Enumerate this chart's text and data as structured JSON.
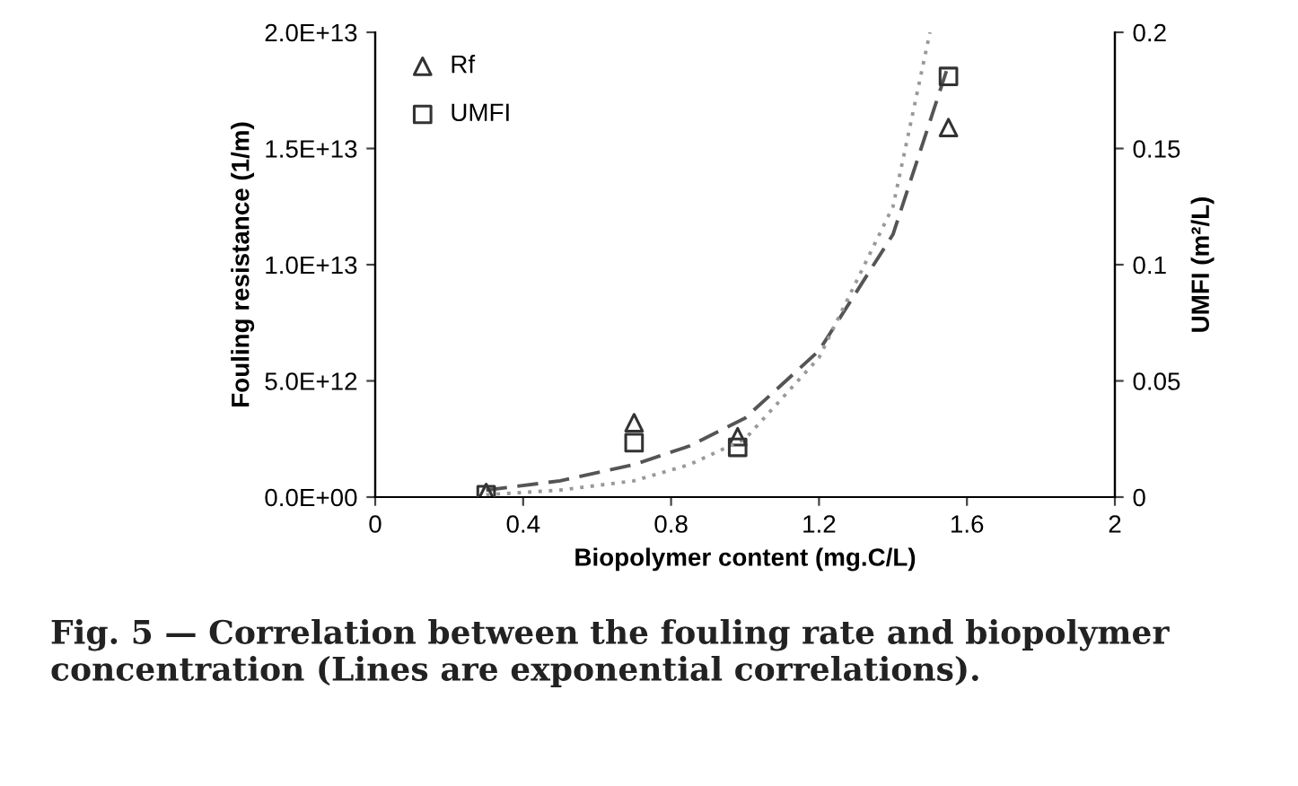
{
  "chart_data": {
    "type": "scatter",
    "xlabel": "Biopolymer content (mg.C/L)",
    "ylabel": "Fouling resistance (1/m)",
    "y2label": "UMFI (m²/L)",
    "xlim": [
      0,
      2
    ],
    "xticks": [
      0,
      0.4,
      0.8,
      1.2,
      1.6,
      2
    ],
    "ylim": [
      0,
      20000000000000.0
    ],
    "yticks": [
      {
        "value": 0,
        "label": "0.0E+00"
      },
      {
        "value": 5000000000000.0,
        "label": "5.0E+12"
      },
      {
        "value": 10000000000000.0,
        "label": "1.0E+13"
      },
      {
        "value": 15000000000000.0,
        "label": "1.5E+13"
      },
      {
        "value": 20000000000000.0,
        "label": "2.0E+13"
      }
    ],
    "y2lim": [
      0,
      0.2
    ],
    "y2ticks": [
      0,
      0.05,
      0.1,
      0.15,
      0.2
    ],
    "grid": false,
    "legend": "top left",
    "series": [
      {
        "name": "Rf",
        "marker": "triangle",
        "color": "#333333",
        "x": [
          0.3,
          0.7,
          0.98,
          1.55
        ],
        "values": [
          200000000000.0,
          3200000000000.0,
          2600000000000.0,
          15900000000000.0
        ]
      },
      {
        "name": "UMFI",
        "marker": "square",
        "axis": "y2",
        "color": "#333333",
        "x": [
          0.3,
          0.7,
          0.98,
          1.55
        ],
        "values": [
          0.001,
          0.0234,
          0.0214,
          0.181
        ]
      },
      {
        "type": "line",
        "line_style": "dashed",
        "color": "#555555",
        "x": [
          0.3,
          0.5,
          0.7,
          0.85,
          1.0,
          1.2,
          1.4,
          1.55
        ],
        "values": [
          300000000000.0,
          700000000000.0,
          1400000000000.0,
          2200000000000.0,
          3400000000000.0,
          6300000000000.0,
          11300000000000.0,
          18600000000000.0
        ]
      },
      {
        "type": "line",
        "line_style": "dotted",
        "axis": "y2",
        "color": "#999999",
        "x": [
          0.3,
          0.5,
          0.7,
          0.85,
          1.0,
          1.2,
          1.4,
          1.5
        ],
        "values": [
          0.001,
          0.003,
          0.007,
          0.014,
          0.025,
          0.06,
          0.125,
          0.2
        ]
      }
    ],
    "annotations": [
      "Fig. 5 — Correlation between the fouling rate and biopolymer concentration (Lines are exponential correlations)."
    ]
  }
}
